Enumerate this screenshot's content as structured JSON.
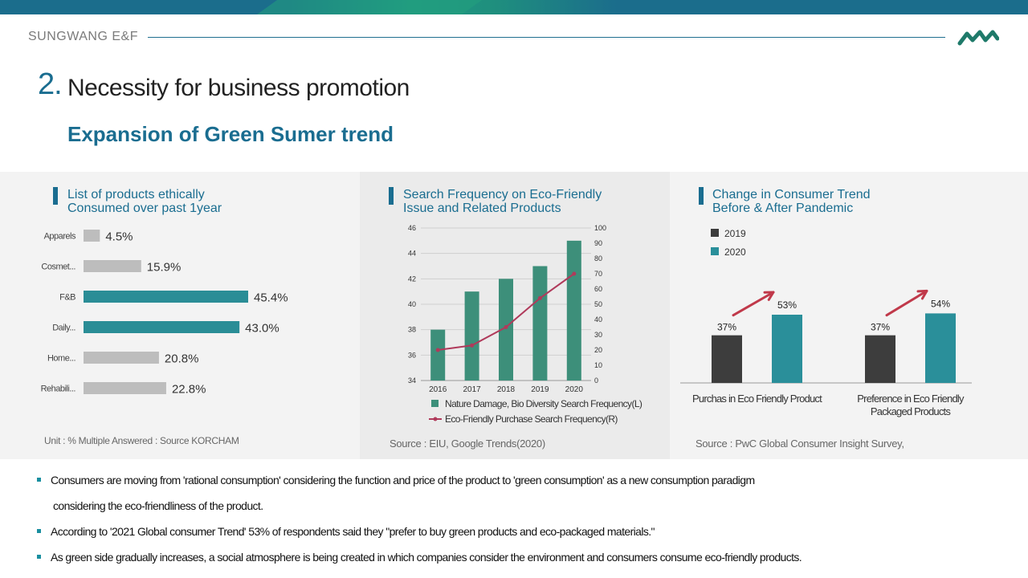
{
  "header": {
    "company": "SUNGWANG E&F",
    "section_number": "2.",
    "section_title": "Necessity for business promotion",
    "subtitle": "Expansion of Green Sumer trend"
  },
  "panel1": {
    "title_line1": "List of products ethically",
    "title_line2": "Consumed over past 1year",
    "note": "Unit : % Multiple  Answered  : Source  KORCHAM"
  },
  "panel2": {
    "title_line1": "Search Frequency on Eco-Friendly",
    "title_line2": "Issue and Related Products",
    "note": "Source : EIU, Google  Trends(2020)"
  },
  "panel3": {
    "title_line1": "Change in Consumer Trend",
    "title_line2": "Before & After Pandemic",
    "note": "Source : PwC Global  Consumer  Insight  Survey,"
  },
  "chart_data": [
    {
      "type": "bar",
      "orientation": "horizontal",
      "categories": [
        "Apparels",
        "Cosmet...",
        "F&B",
        "Daily...",
        "Home...",
        "Rehabili..."
      ],
      "values": [
        4.5,
        15.9,
        45.4,
        43.0,
        20.8,
        22.8
      ],
      "value_labels": [
        "4.5%",
        "15.9%",
        "45.4%",
        "43.0%",
        "20.8%",
        "22.8%"
      ],
      "highlight": [
        false,
        false,
        true,
        true,
        false,
        false
      ],
      "colors": {
        "normal": "#bdbdbd",
        "highlight": "#2a8d96"
      }
    },
    {
      "type": "bar",
      "categories": [
        "2016",
        "2017",
        "2018",
        "2019",
        "2020"
      ],
      "series": [
        {
          "name": "Nature  Damage,  Bio Diversity  Search  Frequency(L)",
          "type": "bar",
          "axis": "left",
          "values": [
            38,
            41,
            42,
            43,
            45
          ],
          "color": "#3d8f7a"
        },
        {
          "name": "Eco-Friendly  Purchase  Search  Frequency(R)",
          "type": "line",
          "axis": "right",
          "values": [
            20,
            23,
            35,
            54,
            70
          ],
          "color": "#b03a5b"
        }
      ],
      "ylim_left": [
        34,
        46
      ],
      "yticks_left": [
        "34",
        "36",
        "38",
        "40",
        "42",
        "44",
        "46"
      ],
      "ylim_right": [
        0,
        100
      ],
      "yticks_right": [
        "0",
        "10",
        "20",
        "30",
        "40",
        "50",
        "60",
        "70",
        "80",
        "90",
        "100"
      ],
      "grid": true,
      "legend": "bottom"
    },
    {
      "type": "bar",
      "categories": [
        "Purchas  in Eco Friendly  Product",
        "Preference  in Eco Friendly Packaged  Products"
      ],
      "category_lines": [
        [
          "Purchas  in Eco Friendly  Product"
        ],
        [
          "Preference  in Eco Friendly",
          "Packaged  Products"
        ]
      ],
      "series": [
        {
          "name": "2019",
          "values": [
            37,
            37
          ],
          "labels": [
            "37%",
            "37%"
          ],
          "color": "#3d3d3d"
        },
        {
          "name": "2020",
          "values": [
            53,
            54
          ],
          "labels": [
            "53%",
            "54%"
          ],
          "color": "#2a8f9a"
        }
      ],
      "legend": "top-left",
      "arrow_color": "#c0394a"
    }
  ],
  "bullets": [
    {
      "line1": "Consumers are moving from 'rational consumption' considering the function and price of the product to 'green consumption' as a new consumption paradigm",
      "line2": "considering the eco-friendliness of the product."
    },
    {
      "line1": "According to '2021 Global consumer Trend' 53% of respondents said they \"prefer to buy green products and eco-packaged materials.\""
    },
    {
      "line1": "As green side gradually increases, a social atmosphere is being created in which companies consider the environment and consumers consume eco-friendly products."
    }
  ],
  "colors": {
    "accent": "#1a6d90",
    "teal": "#2a8d96",
    "green": "#3d8f7a"
  }
}
